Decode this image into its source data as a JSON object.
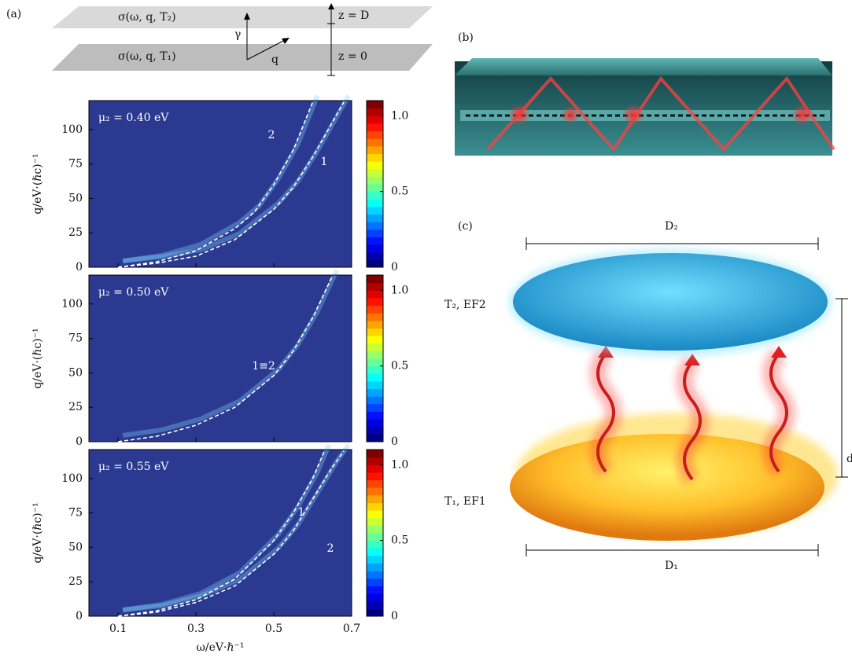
{
  "chart_data": [
    {
      "type": "line",
      "annotation": "μ₂ = 0.40 eV",
      "ylabel": "q/eV·(ℏc)⁻¹",
      "xlim": [
        0.025,
        0.7
      ],
      "ylim": [
        0,
        121
      ],
      "xticks": [
        0.1,
        0.3,
        0.5,
        0.7
      ],
      "yticks": [
        0,
        25,
        50,
        75,
        100
      ],
      "show_xtick_labels": false,
      "clim": [
        0,
        1.1
      ],
      "cticks": [
        0,
        0.5,
        {
          "value": 1,
          "label": "1.0"
        }
      ],
      "series": [
        {
          "name": "2",
          "color": "#ffffff",
          "x": [
            0.1,
            0.2,
            0.3,
            0.4,
            0.45,
            0.5,
            0.55,
            0.6
          ],
          "values": [
            0,
            4,
            12,
            28,
            40,
            60,
            85,
            120
          ]
        },
        {
          "name": "1",
          "color": "#ffffff",
          "x": [
            0.1,
            0.2,
            0.3,
            0.4,
            0.5,
            0.55,
            0.6,
            0.65,
            0.68
          ],
          "values": [
            0,
            3,
            8,
            20,
            42,
            58,
            80,
            105,
            120
          ]
        }
      ]
    },
    {
      "type": "line",
      "annotation": "μ₂ = 0.50 eV",
      "ylabel": "q/eV·(ℏc)⁻¹",
      "xlim": [
        0.025,
        0.7
      ],
      "ylim": [
        0,
        121
      ],
      "xticks": [
        0.1,
        0.3,
        0.5,
        0.7
      ],
      "yticks": [
        0,
        25,
        50,
        75,
        100
      ],
      "show_xtick_labels": false,
      "clim": [
        0,
        1.1
      ],
      "cticks": [
        0,
        0.5,
        {
          "value": 1,
          "label": "1.0"
        }
      ],
      "series": [
        {
          "name": "1≡2",
          "color": "#ffffff",
          "x": [
            0.1,
            0.2,
            0.3,
            0.4,
            0.5,
            0.55,
            0.6,
            0.65
          ],
          "values": [
            0,
            4,
            12,
            25,
            48,
            66,
            90,
            120
          ]
        }
      ]
    },
    {
      "type": "line",
      "annotation": "μ₂ = 0.55 eV",
      "ylabel": "q/eV·(ℏc)⁻¹",
      "xlabel": "ω/eV·ℏ⁻¹",
      "xlim": [
        0.025,
        0.7
      ],
      "ylim": [
        0,
        121
      ],
      "xticks": [
        0.1,
        0.3,
        0.5,
        0.7
      ],
      "yticks": [
        0,
        25,
        50,
        75,
        100
      ],
      "show_xtick_labels": true,
      "clim": [
        0,
        1.1
      ],
      "cticks": [
        0,
        0.5,
        {
          "value": 1,
          "label": "1.0"
        }
      ],
      "series": [
        {
          "name": "1",
          "color": "#ffffff",
          "x": [
            0.1,
            0.2,
            0.3,
            0.4,
            0.5,
            0.55,
            0.6,
            0.63
          ],
          "values": [
            0,
            4,
            12,
            27,
            55,
            75,
            100,
            120
          ]
        },
        {
          "name": "2",
          "color": "#ffffff",
          "x": [
            0.1,
            0.2,
            0.3,
            0.4,
            0.5,
            0.55,
            0.6,
            0.65,
            0.68
          ],
          "values": [
            0,
            3,
            10,
            22,
            45,
            62,
            85,
            108,
            120
          ]
        }
      ]
    }
  ],
  "panel_a": {
    "label": "(a)",
    "top_sheet": "σ(ω, q, T₂)",
    "bottom_sheet": "σ(ω, q, T₁)",
    "gamma": "γ",
    "q": "q",
    "top_z": "z = D",
    "bottom_z": "z = 0"
  },
  "panel_b": {
    "label": "(b)"
  },
  "panel_c": {
    "label": "(c)",
    "top_width": "D₂",
    "top_sheet": "T₂, EF2",
    "bottom_sheet": "T₁, EF1",
    "bottom_width": "D₁",
    "gap": "d"
  }
}
